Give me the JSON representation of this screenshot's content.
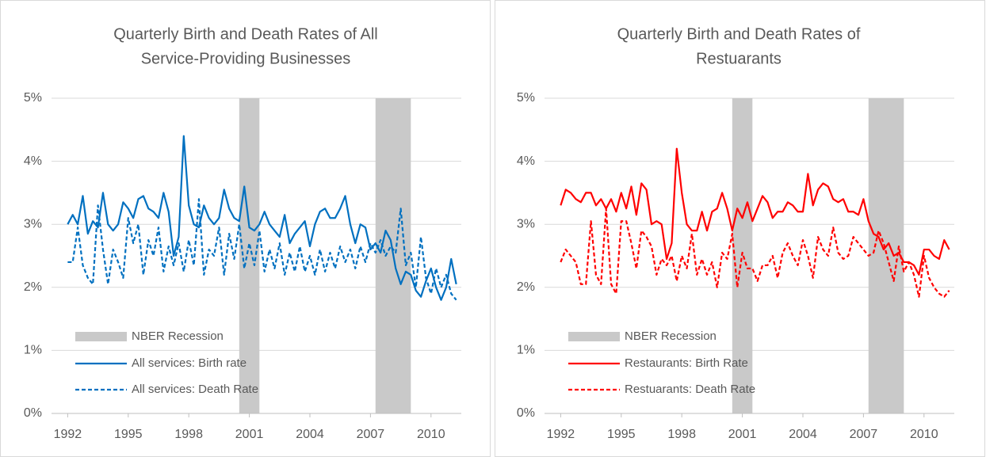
{
  "chart_data": [
    {
      "type": "line",
      "title": [
        "Quarterly Birth and Death Rates of All",
        "Service-Providing Businesses"
      ],
      "x": [
        1992,
        1992.25,
        1992.5,
        1992.75,
        1993,
        1993.25,
        1993.5,
        1993.75,
        1994,
        1994.25,
        1994.5,
        1994.75,
        1995,
        1995.25,
        1995.5,
        1995.75,
        1996,
        1996.25,
        1996.5,
        1996.75,
        1997,
        1997.25,
        1997.5,
        1997.75,
        1998,
        1998.25,
        1998.5,
        1998.75,
        1999,
        1999.25,
        1999.5,
        1999.75,
        2000,
        2000.25,
        2000.5,
        2000.75,
        2001,
        2001.25,
        2001.5,
        2001.75,
        2002,
        2002.25,
        2002.5,
        2002.75,
        2003,
        2003.25,
        2003.5,
        2003.75,
        2004,
        2004.25,
        2004.5,
        2004.75,
        2005,
        2005.25,
        2005.5,
        2005.75,
        2006,
        2006.25,
        2006.5,
        2006.75,
        2007,
        2007.25,
        2007.5,
        2007.75,
        2008,
        2008.25,
        2008.5,
        2008.75,
        2009,
        2009.25,
        2009.5,
        2009.75,
        2010,
        2010.25,
        2010.5,
        2010.75,
        2011,
        2011.25
      ],
      "series": [
        {
          "name": "All services: Birth rate",
          "color": "#0070c0",
          "dash": false,
          "values": [
            3.0,
            3.15,
            3.0,
            3.45,
            2.85,
            3.05,
            2.95,
            3.5,
            3.0,
            2.9,
            3.0,
            3.35,
            3.25,
            3.1,
            3.4,
            3.45,
            3.25,
            3.2,
            3.1,
            3.5,
            3.2,
            2.5,
            2.8,
            4.4,
            3.3,
            3.0,
            2.95,
            3.3,
            3.1,
            3.0,
            3.1,
            3.55,
            3.25,
            3.1,
            3.05,
            3.6,
            2.95,
            2.9,
            3.0,
            3.2,
            3.0,
            2.9,
            2.8,
            3.15,
            2.7,
            2.85,
            2.95,
            3.05,
            2.65,
            3.0,
            3.2,
            3.25,
            3.1,
            3.1,
            3.25,
            3.45,
            3.0,
            2.7,
            3.0,
            2.95,
            2.6,
            2.7,
            2.55,
            2.9,
            2.75,
            2.3,
            2.05,
            2.25,
            2.2,
            1.95,
            1.85,
            2.1,
            2.3,
            2.0,
            1.8,
            2.0,
            2.45,
            2.05
          ]
        },
        {
          "name": "All services: Death Rate",
          "color": "#0070c0",
          "dash": true,
          "values": [
            2.4,
            2.4,
            2.95,
            2.35,
            2.15,
            2.05,
            3.3,
            2.6,
            2.05,
            2.6,
            2.4,
            2.15,
            3.1,
            2.7,
            3.0,
            2.2,
            2.75,
            2.5,
            2.95,
            2.25,
            2.65,
            2.35,
            2.7,
            2.25,
            2.75,
            2.35,
            3.4,
            2.2,
            2.6,
            2.5,
            2.95,
            2.2,
            2.85,
            2.45,
            3.0,
            2.3,
            2.7,
            2.35,
            2.9,
            2.25,
            2.6,
            2.3,
            2.7,
            2.2,
            2.55,
            2.25,
            2.65,
            2.25,
            2.5,
            2.2,
            2.6,
            2.25,
            2.55,
            2.3,
            2.65,
            2.4,
            2.6,
            2.3,
            2.65,
            2.4,
            2.7,
            2.55,
            2.75,
            2.5,
            2.65,
            2.55,
            3.25,
            2.35,
            2.55,
            2.0,
            2.8,
            2.15,
            1.9,
            2.3,
            2.0,
            2.2,
            1.9,
            1.8
          ]
        }
      ],
      "recession_label": "NBER Recession",
      "recession_color": "#c9c9c9",
      "recessions": [
        [
          2000.5,
          2001.5
        ],
        [
          2007.25,
          2009
        ]
      ],
      "xlim": [
        1991.2,
        2011.5
      ],
      "xticks": [
        1992,
        1995,
        1998,
        2001,
        2004,
        2007,
        2010
      ],
      "ylim": [
        0,
        5
      ],
      "yticks": [
        {
          "value": 0,
          "label": "0%"
        },
        {
          "value": 1,
          "label": "1%"
        },
        {
          "value": 2,
          "label": "2%"
        },
        {
          "value": 3,
          "label": "3%"
        },
        {
          "value": 4,
          "label": "4%"
        },
        {
          "value": 5,
          "label": "5%"
        }
      ],
      "grid": true
    },
    {
      "type": "line",
      "title": [
        "Quarterly Birth and Death Rates of",
        "Restuarants"
      ],
      "x": [
        1992,
        1992.25,
        1992.5,
        1992.75,
        1993,
        1993.25,
        1993.5,
        1993.75,
        1994,
        1994.25,
        1994.5,
        1994.75,
        1995,
        1995.25,
        1995.5,
        1995.75,
        1996,
        1996.25,
        1996.5,
        1996.75,
        1997,
        1997.25,
        1997.5,
        1997.75,
        1998,
        1998.25,
        1998.5,
        1998.75,
        1999,
        1999.25,
        1999.5,
        1999.75,
        2000,
        2000.25,
        2000.5,
        2000.75,
        2001,
        2001.25,
        2001.5,
        2001.75,
        2002,
        2002.25,
        2002.5,
        2002.75,
        2003,
        2003.25,
        2003.5,
        2003.75,
        2004,
        2004.25,
        2004.5,
        2004.75,
        2005,
        2005.25,
        2005.5,
        2005.75,
        2006,
        2006.25,
        2006.5,
        2006.75,
        2007,
        2007.25,
        2007.5,
        2007.75,
        2008,
        2008.25,
        2008.5,
        2008.75,
        2009,
        2009.25,
        2009.5,
        2009.75,
        2010,
        2010.25,
        2010.5,
        2010.75,
        2011,
        2011.25
      ],
      "series": [
        {
          "name": "Restaurants: Birth Rate",
          "color": "#ff0000",
          "dash": false,
          "values": [
            3.3,
            3.55,
            3.5,
            3.4,
            3.35,
            3.5,
            3.5,
            3.3,
            3.4,
            3.25,
            3.4,
            3.2,
            3.5,
            3.25,
            3.6,
            3.15,
            3.65,
            3.55,
            3.0,
            3.05,
            3.0,
            2.45,
            2.7,
            4.2,
            3.5,
            3.0,
            2.9,
            2.9,
            3.2,
            2.9,
            3.2,
            3.25,
            3.5,
            3.25,
            2.9,
            3.25,
            3.1,
            3.35,
            3.05,
            3.25,
            3.45,
            3.35,
            3.1,
            3.2,
            3.2,
            3.35,
            3.3,
            3.2,
            3.2,
            3.8,
            3.3,
            3.55,
            3.65,
            3.6,
            3.4,
            3.35,
            3.4,
            3.2,
            3.2,
            3.15,
            3.4,
            3.05,
            2.85,
            2.8,
            2.6,
            2.7,
            2.5,
            2.55,
            2.4,
            2.4,
            2.35,
            2.2,
            2.6,
            2.6,
            2.5,
            2.45,
            2.75,
            2.6
          ]
        },
        {
          "name": "Restuarants: Death Rate",
          "color": "#ff0000",
          "dash": true,
          "values": [
            2.4,
            2.6,
            2.5,
            2.4,
            2.05,
            2.05,
            3.05,
            2.2,
            2.05,
            3.25,
            2.05,
            1.9,
            3.05,
            3.05,
            2.7,
            2.3,
            2.9,
            2.8,
            2.65,
            2.2,
            2.45,
            2.35,
            2.5,
            2.1,
            2.5,
            2.3,
            2.85,
            2.2,
            2.45,
            2.2,
            2.4,
            2.0,
            2.55,
            2.45,
            2.85,
            2.0,
            2.55,
            2.3,
            2.3,
            2.1,
            2.35,
            2.35,
            2.5,
            2.15,
            2.55,
            2.7,
            2.5,
            2.35,
            2.75,
            2.5,
            2.15,
            2.8,
            2.6,
            2.5,
            2.95,
            2.55,
            2.45,
            2.5,
            2.8,
            2.7,
            2.6,
            2.5,
            2.55,
            2.9,
            2.7,
            2.4,
            2.1,
            2.65,
            2.25,
            2.4,
            2.2,
            1.85,
            2.5,
            2.15,
            2.0,
            1.9,
            1.85,
            1.95
          ]
        }
      ],
      "recession_label": "NBER Recession",
      "recession_color": "#c9c9c9",
      "recessions": [
        [
          2000.5,
          2001.5
        ],
        [
          2007.25,
          2009
        ]
      ],
      "xlim": [
        1991.2,
        2011.5
      ],
      "xticks": [
        1992,
        1995,
        1998,
        2001,
        2004,
        2007,
        2010
      ],
      "ylim": [
        0,
        5
      ],
      "yticks": [
        {
          "value": 0,
          "label": "0%"
        },
        {
          "value": 1,
          "label": "1%"
        },
        {
          "value": 2,
          "label": "2%"
        },
        {
          "value": 3,
          "label": "3%"
        },
        {
          "value": 4,
          "label": "4%"
        },
        {
          "value": 5,
          "label": "5%"
        }
      ],
      "grid": true
    }
  ]
}
